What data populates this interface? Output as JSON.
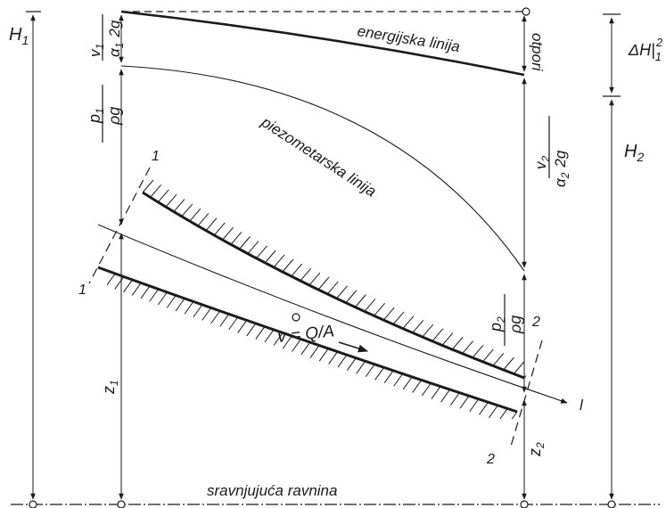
{
  "labels": {
    "H1": "H",
    "H1_sub": "1",
    "H2": "H",
    "H2_sub": "2",
    "dH": "ΔH|",
    "dH_sub": "1",
    "dH_sup": "2",
    "energy_line": "energijska linija",
    "piezo_line": "piezometarska linija",
    "otpori": "otpori",
    "datum": "sravnjujuća ravnina",
    "velocity": "v = Q/A",
    "v1": "v",
    "v1_sub": "1",
    "alpha1": "α",
    "alpha1_sub": "1",
    "v2": "v",
    "v2_sub": "2",
    "alpha2": "α",
    "alpha2_sub": "2",
    "twog": "2g",
    "p1": "p",
    "p1_sub": "1",
    "p2": "p",
    "p2_sub": "2",
    "rhog": "ρg",
    "z1": "z",
    "z1_sub": "1",
    "z2": "z",
    "z2_sub": "2",
    "sec1": "1",
    "sec2": "2",
    "l": "l"
  }
}
